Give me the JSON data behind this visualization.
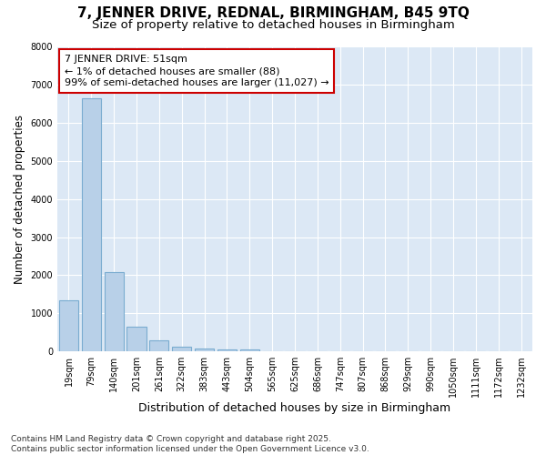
{
  "title": "7, JENNER DRIVE, REDNAL, BIRMINGHAM, B45 9TQ",
  "subtitle": "Size of property relative to detached houses in Birmingham",
  "xlabel": "Distribution of detached houses by size in Birmingham",
  "ylabel": "Number of detached properties",
  "categories": [
    "19sqm",
    "79sqm",
    "140sqm",
    "201sqm",
    "261sqm",
    "322sqm",
    "383sqm",
    "443sqm",
    "504sqm",
    "565sqm",
    "625sqm",
    "686sqm",
    "747sqm",
    "807sqm",
    "868sqm",
    "929sqm",
    "990sqm",
    "1050sqm",
    "1111sqm",
    "1172sqm",
    "1232sqm"
  ],
  "values": [
    1340,
    6640,
    2090,
    640,
    300,
    130,
    80,
    60,
    60,
    0,
    0,
    0,
    0,
    0,
    0,
    0,
    0,
    0,
    0,
    0,
    0
  ],
  "bar_color": "#b8d0e8",
  "bar_edge_color": "#7aacd0",
  "annotation_box_edge_color": "#cc0000",
  "annotation_line1": "7 JENNER DRIVE: 51sqm",
  "annotation_line2": "← 1% of detached houses are smaller (88)",
  "annotation_line3": "99% of semi-detached houses are larger (11,027) →",
  "ylim_min": 0,
  "ylim_max": 8000,
  "yticks": [
    0,
    1000,
    2000,
    3000,
    4000,
    5000,
    6000,
    7000,
    8000
  ],
  "plot_bg_color": "#dce8f5",
  "grid_color": "#ffffff",
  "fig_bg_color": "#ffffff",
  "footer": "Contains HM Land Registry data © Crown copyright and database right 2025.\nContains public sector information licensed under the Open Government Licence v3.0.",
  "title_fontsize": 11,
  "subtitle_fontsize": 9.5,
  "xlabel_fontsize": 9,
  "ylabel_fontsize": 8.5,
  "tick_fontsize": 7,
  "annotation_fontsize": 8,
  "footer_fontsize": 6.5
}
